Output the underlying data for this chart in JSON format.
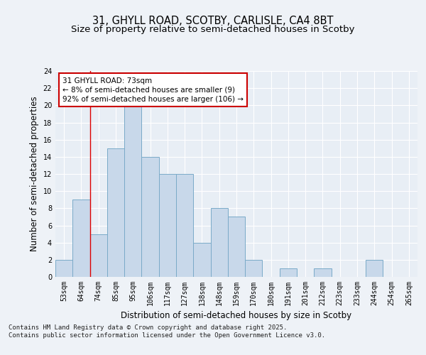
{
  "title_line1": "31, GHYLL ROAD, SCOTBY, CARLISLE, CA4 8BT",
  "title_line2": "Size of property relative to semi-detached houses in Scotby",
  "xlabel": "Distribution of semi-detached houses by size in Scotby",
  "ylabel": "Number of semi-detached properties",
  "categories": [
    "53sqm",
    "64sqm",
    "74sqm",
    "85sqm",
    "95sqm",
    "106sqm",
    "117sqm",
    "127sqm",
    "138sqm",
    "148sqm",
    "159sqm",
    "170sqm",
    "180sqm",
    "191sqm",
    "201sqm",
    "212sqm",
    "223sqm",
    "233sqm",
    "244sqm",
    "254sqm",
    "265sqm"
  ],
  "values": [
    2,
    9,
    5,
    15,
    20,
    14,
    12,
    12,
    4,
    8,
    7,
    2,
    0,
    1,
    0,
    1,
    0,
    0,
    2,
    0,
    0
  ],
  "bar_color": "#c8d8ea",
  "bar_edge_color": "#7aaac8",
  "red_line_x": 1.5,
  "annotation_text": "31 GHYLL ROAD: 73sqm\n← 8% of semi-detached houses are smaller (9)\n92% of semi-detached houses are larger (106) →",
  "annotation_box_color": "#ffffff",
  "annotation_border_color": "#cc0000",
  "ylim": [
    0,
    24
  ],
  "yticks": [
    0,
    2,
    4,
    6,
    8,
    10,
    12,
    14,
    16,
    18,
    20,
    22,
    24
  ],
  "footer_text": "Contains HM Land Registry data © Crown copyright and database right 2025.\nContains public sector information licensed under the Open Government Licence v3.0.",
  "background_color": "#eef2f7",
  "plot_background_color": "#e8eef5",
  "grid_color": "#ffffff",
  "title_fontsize": 10.5,
  "subtitle_fontsize": 9.5,
  "axis_label_fontsize": 8.5,
  "tick_fontsize": 7,
  "annotation_fontsize": 7.5,
  "footer_fontsize": 6.5
}
